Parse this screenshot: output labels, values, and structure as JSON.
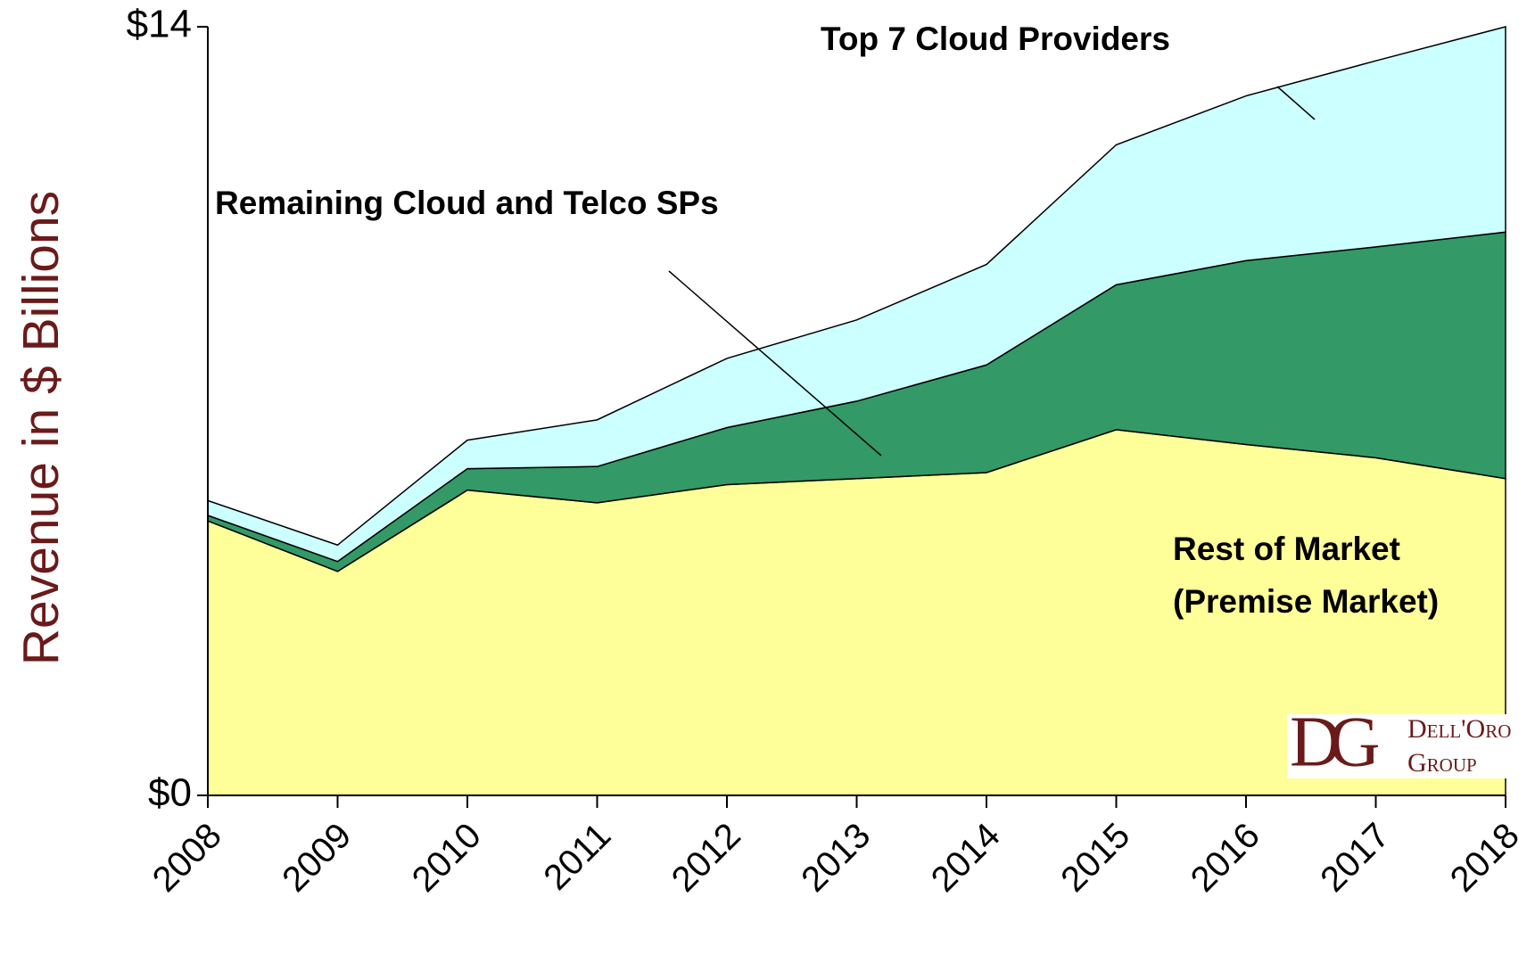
{
  "chart_data": {
    "type": "stacked_area",
    "ylabel": "Revenue in $ Billions",
    "categories": [
      "2008",
      "2009",
      "2010",
      "2011",
      "2012",
      "2013",
      "2014",
      "2015",
      "2016",
      "2017",
      "2018"
    ],
    "series": [
      {
        "name": "Rest of Market",
        "color": "#ffff99",
        "values": [
          5.0,
          4.08,
          5.56,
          5.33,
          5.66,
          5.77,
          5.88,
          6.66,
          6.39,
          6.15,
          5.77
        ]
      },
      {
        "name": "Remaining Cloud and Telco SPs",
        "color": "#339966",
        "values": [
          0.1,
          0.18,
          0.39,
          0.66,
          1.04,
          1.41,
          1.96,
          2.64,
          3.35,
          3.84,
          4.49
        ]
      },
      {
        "name": "Top 7 Cloud Providers",
        "color": "#ccffff",
        "values": [
          0.27,
          0.3,
          0.52,
          0.85,
          1.26,
          1.48,
          1.83,
          2.55,
          3.0,
          3.39,
          3.74
        ]
      }
    ],
    "annotations": {
      "top7": "Top 7 Cloud Providers",
      "remaining": "Remaining Cloud and Telco SPs",
      "rest": [
        "Rest of Market",
        "(Premise Market)"
      ]
    },
    "ylim": [
      0,
      14
    ],
    "yticks": [
      {
        "value": 0,
        "label": "$0"
      },
      {
        "value": 14,
        "label": "$14"
      }
    ],
    "logo": {
      "mark": "DG",
      "line1": "Dell'Oro",
      "line2": "Group"
    }
  }
}
